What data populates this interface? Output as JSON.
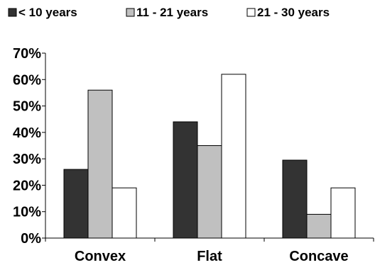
{
  "chart_data": {
    "type": "bar",
    "categories": [
      "Convex",
      "Flat",
      "Concave"
    ],
    "series": [
      {
        "name": "< 10 years",
        "values": [
          26,
          44,
          29.5
        ],
        "color": "#333333"
      },
      {
        "name": "11 - 21 years",
        "values": [
          56,
          35,
          9
        ],
        "color": "#c0c0c0"
      },
      {
        "name": "21 - 30 years",
        "values": [
          19,
          62,
          19
        ],
        "color": "#ffffff"
      }
    ],
    "y_ticks": [
      "0%",
      "10%",
      "20%",
      "30%",
      "40%",
      "50%",
      "60%",
      "70%"
    ],
    "ylim": [
      0,
      70
    ],
    "y_unit": "%",
    "grid": false,
    "legend_position": "top"
  }
}
